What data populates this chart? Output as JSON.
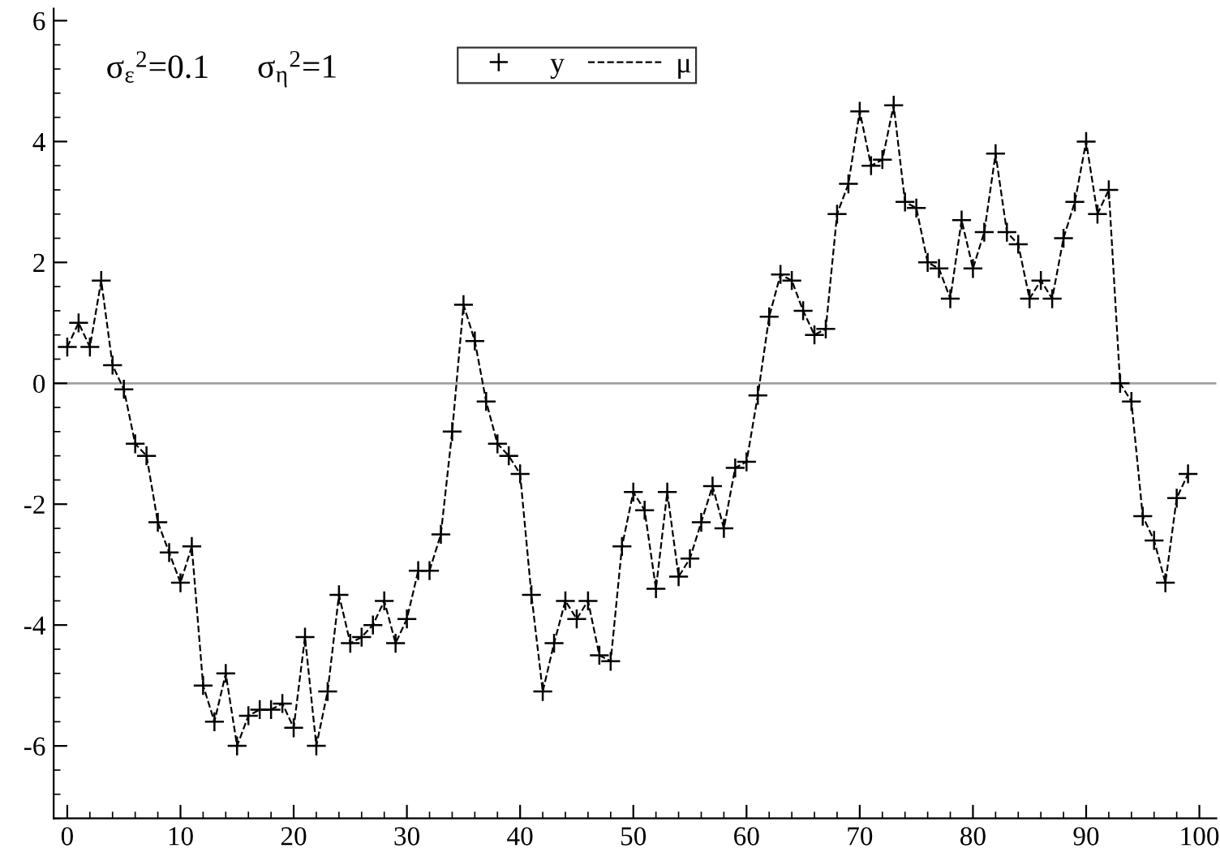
{
  "chart_data": {
    "type": "line",
    "x": [
      0,
      1,
      2,
      3,
      4,
      5,
      6,
      7,
      8,
      9,
      10,
      11,
      12,
      13,
      14,
      15,
      16,
      17,
      18,
      19,
      20,
      21,
      22,
      23,
      24,
      25,
      26,
      27,
      28,
      29,
      30,
      31,
      32,
      33,
      34,
      35,
      36,
      37,
      38,
      39,
      40,
      41,
      42,
      43,
      44,
      45,
      46,
      47,
      48,
      49,
      50,
      51,
      52,
      53,
      54,
      55,
      56,
      57,
      58,
      59,
      60,
      61,
      62,
      63,
      64,
      65,
      66,
      67,
      68,
      69,
      70,
      71,
      72,
      73,
      74,
      75,
      76,
      77,
      78,
      79,
      80,
      81,
      82,
      83,
      84,
      85,
      86,
      87,
      88,
      89,
      90,
      91,
      92,
      93,
      94,
      95,
      96,
      97,
      98,
      99
    ],
    "series": [
      {
        "name": "y",
        "type": "scatter",
        "marker": "cross",
        "color": "#000000",
        "values": [
          0.6,
          1.0,
          0.6,
          1.7,
          0.3,
          -0.1,
          -1.0,
          -1.2,
          -2.3,
          -2.8,
          -3.3,
          -2.7,
          -5.0,
          -5.6,
          -4.8,
          -6.0,
          -5.5,
          -5.4,
          -5.4,
          -5.3,
          -5.7,
          -4.2,
          -6.0,
          -5.1,
          -3.5,
          -4.3,
          -4.2,
          -4.0,
          -3.6,
          -4.3,
          -3.9,
          -3.1,
          -3.1,
          -2.5,
          -0.8,
          1.3,
          0.7,
          -0.3,
          -1.0,
          -1.2,
          -1.5,
          -3.5,
          -5.1,
          -4.3,
          -3.6,
          -3.9,
          -3.6,
          -4.5,
          -4.6,
          -2.7,
          -1.8,
          -2.1,
          -3.4,
          -1.8,
          -3.2,
          -2.9,
          -2.3,
          -1.7,
          -2.4,
          -1.4,
          -1.3,
          -0.2,
          1.1,
          1.8,
          1.7,
          1.2,
          0.8,
          0.9,
          2.8,
          3.3,
          4.5,
          3.6,
          3.7,
          4.6,
          3.0,
          2.9,
          2.0,
          1.9,
          1.4,
          2.7,
          1.9,
          2.5,
          3.8,
          2.5,
          2.3,
          1.4,
          1.7,
          1.4,
          2.4,
          3.0,
          4.0,
          2.8,
          3.2,
          0.0,
          -0.3,
          -2.2,
          -2.6,
          -3.3,
          -1.9,
          -1.5
        ]
      },
      {
        "name": "μ",
        "marker": "none",
        "line_style": "dashed",
        "color": "#000000",
        "values": [
          0.6,
          1.0,
          0.6,
          1.7,
          0.3,
          -0.1,
          -1.0,
          -1.2,
          -2.3,
          -2.8,
          -3.3,
          -2.7,
          -5.0,
          -5.6,
          -4.8,
          -6.0,
          -5.5,
          -5.4,
          -5.4,
          -5.3,
          -5.7,
          -4.2,
          -6.0,
          -5.1,
          -3.5,
          -4.3,
          -4.2,
          -4.0,
          -3.6,
          -4.3,
          -3.9,
          -3.1,
          -3.1,
          -2.5,
          -0.8,
          1.3,
          0.7,
          -0.3,
          -1.0,
          -1.2,
          -1.5,
          -3.5,
          -5.1,
          -4.3,
          -3.6,
          -3.9,
          -3.6,
          -4.5,
          -4.6,
          -2.7,
          -1.8,
          -2.1,
          -3.4,
          -1.8,
          -3.2,
          -2.9,
          -2.3,
          -1.7,
          -2.4,
          -1.4,
          -1.3,
          -0.2,
          1.1,
          1.8,
          1.7,
          1.2,
          0.8,
          0.9,
          2.8,
          3.3,
          4.5,
          3.6,
          3.7,
          4.6,
          3.0,
          2.9,
          2.0,
          1.9,
          1.4,
          2.7,
          1.9,
          2.5,
          3.8,
          2.5,
          2.3,
          1.4,
          1.7,
          1.4,
          2.4,
          3.0,
          4.0,
          2.8,
          3.2,
          0.0,
          -0.3,
          -2.2,
          -2.6,
          -3.3,
          -1.9,
          -1.5
        ]
      }
    ],
    "xlim": [
      -1.2,
      101.5
    ],
    "ylim": [
      -7.2,
      6.2
    ],
    "xticks": [
      0,
      10,
      20,
      30,
      40,
      50,
      60,
      70,
      80,
      90,
      100
    ],
    "yticks": [
      -6,
      -4,
      -2,
      0,
      2,
      4,
      6
    ],
    "ref_lines": [
      {
        "axis": "y",
        "value": 0,
        "color": "#a0a0a0"
      }
    ],
    "annotations": [
      "σ$_{ε}$$^{2}$=0.1",
      "σ$_{η}$$^{2}$=1"
    ],
    "legend": "top center",
    "grid": false
  }
}
